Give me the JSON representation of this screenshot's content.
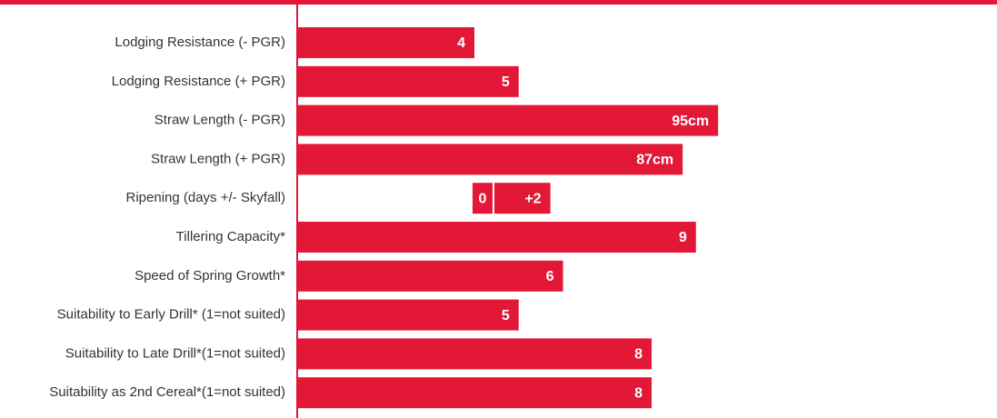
{
  "chart_data": {
    "type": "bar",
    "orientation": "horizontal",
    "categories": [
      "Lodging Resistance (- PGR)",
      "Lodging Resistance (+ PGR)",
      "Straw Length (- PGR)",
      "Straw Length (+ PGR)",
      "Ripening (days +/- Skyfall)",
      "Tillering Capacity*",
      "Speed of Spring Growth*",
      "Suitability to Early Drill* (1=not suited)",
      "Suitability to Late Drill*(1=not suited)",
      "Suitability as 2nd Cereal*(1=not suited)"
    ],
    "color": "#e31837",
    "series": [
      {
        "color": "#e31837",
        "xlim": [
          0,
          10
        ],
        "values": [
          4,
          5,
          null,
          null,
          null,
          9,
          6,
          5,
          8,
          8
        ]
      },
      {
        "color": "#e31837",
        "xlim": [
          0,
          100
        ],
        "values": [
          null,
          null,
          95,
          87,
          null,
          null,
          null,
          null,
          null,
          null
        ],
        "value_labels": [
          null,
          null,
          "95cm",
          "87cm",
          null,
          null,
          null,
          null,
          null,
          null
        ]
      },
      {
        "color": "#e31837",
        "xlim": [
          -6,
          8
        ],
        "zero": 0,
        "values": [
          null,
          null,
          null,
          null,
          2,
          null,
          null,
          null,
          null,
          null
        ],
        "value_labels": [
          null,
          null,
          null,
          null,
          "+2",
          null,
          null,
          null,
          null,
          null
        ]
      }
    ]
  }
}
